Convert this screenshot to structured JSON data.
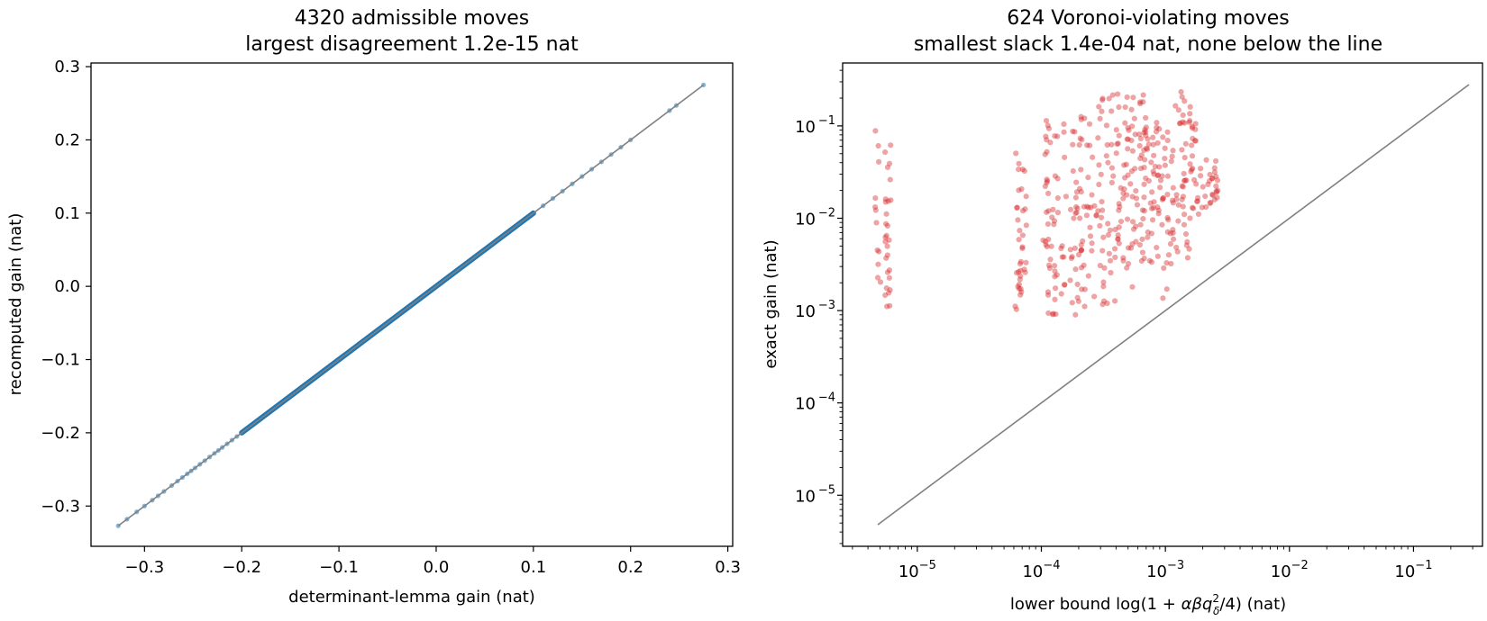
{
  "chart_data": [
    {
      "type": "scatter",
      "title": "4320 admissible moves",
      "subtitle": "largest disagreement 1.2e-15 nat",
      "xlabel": "determinant-lemma gain (nat)",
      "ylabel": "recomputed gain (nat)",
      "xlim": [
        -0.355,
        0.305
      ],
      "ylim": [
        -0.355,
        0.305
      ],
      "xticks": [
        -0.3,
        -0.2,
        -0.1,
        0.0,
        0.1,
        0.2,
        0.3
      ],
      "xtick_labels": [
        "−0.3",
        "−0.2",
        "−0.1",
        "0.0",
        "0.1",
        "0.2",
        "0.3"
      ],
      "yticks": [
        -0.3,
        -0.2,
        -0.1,
        0.0,
        0.1,
        0.2,
        0.3
      ],
      "ytick_labels": [
        "−0.3",
        "−0.2",
        "−0.1",
        "0.0",
        "0.1",
        "0.2",
        "0.3"
      ],
      "grid": false,
      "point_color": "#1f77b4",
      "reference_line": {
        "from": [
          -0.327,
          -0.327
        ],
        "to": [
          0.275,
          0.275
        ],
        "color": "#808080"
      },
      "points_x": [
        -0.327,
        -0.318,
        -0.308,
        -0.3,
        -0.292,
        -0.286,
        -0.28,
        -0.272,
        -0.266,
        -0.261,
        -0.256,
        -0.252,
        -0.248,
        -0.243,
        -0.238,
        -0.233,
        -0.228,
        -0.224,
        -0.22,
        -0.215,
        -0.21,
        -0.205,
        -0.2,
        0.1,
        0.11,
        0.12,
        0.13,
        0.14,
        0.15,
        0.16,
        0.17,
        0.18,
        0.19,
        0.2,
        0.24,
        0.247,
        0.275
      ],
      "points_y": [
        -0.327,
        -0.318,
        -0.308,
        -0.3,
        -0.292,
        -0.286,
        -0.28,
        -0.272,
        -0.266,
        -0.261,
        -0.256,
        -0.252,
        -0.248,
        -0.243,
        -0.238,
        -0.233,
        -0.228,
        -0.224,
        -0.22,
        -0.215,
        -0.21,
        -0.205,
        -0.2,
        0.1,
        0.11,
        0.12,
        0.13,
        0.14,
        0.15,
        0.16,
        0.17,
        0.18,
        0.19,
        0.2,
        0.24,
        0.247,
        0.275
      ],
      "dense_segment": {
        "from": -0.2,
        "to": 0.1
      }
    },
    {
      "type": "scatter",
      "title": "624 Voronoi-violating moves",
      "subtitle": "smallest slack 1.4e-04 nat, none below the line",
      "xlabel_prefix": "lower bound log",
      "xlabel": "lower bound log(1 + αβq_δ²/4) (nat)",
      "ylabel": "exact gain (nat)",
      "xscale": "log",
      "yscale": "log",
      "xlim": [
        2.5e-06,
        0.36
      ],
      "ylim": [
        2.8e-06,
        0.48
      ],
      "xticks": [
        1e-05,
        0.0001,
        0.001,
        0.01,
        0.1
      ],
      "xtick_labels": [
        [
          "10",
          "−5"
        ],
        [
          "10",
          "−4"
        ],
        [
          "10",
          "−3"
        ],
        [
          "10",
          "−2"
        ],
        [
          "10",
          "−1"
        ]
      ],
      "yticks": [
        1e-05,
        0.0001,
        0.001,
        0.01,
        0.1
      ],
      "ytick_labels": [
        [
          "10",
          "−5"
        ],
        [
          "10",
          "−4"
        ],
        [
          "10",
          "−3"
        ],
        [
          "10",
          "−2"
        ],
        [
          "10",
          "−1"
        ]
      ],
      "grid": false,
      "point_color": "#d62728",
      "reference_line": {
        "from": [
          4.8e-06,
          4.8e-06
        ],
        "to": [
          0.28,
          0.28
        ],
        "color": "#808080"
      },
      "x_columns": [
        4.8e-06,
        5.7e-06,
        5.8e-06,
        6.4e-05,
        6.8e-05,
        7.2e-05,
        0.000108,
        0.000115,
        0.00013,
        0.00015,
        0.00018,
        0.0002,
        0.00022,
        0.00024,
        0.00027,
        0.0003,
        0.00033,
        0.00036,
        0.0004,
        0.00044,
        0.00048,
        0.00052,
        0.00056,
        0.0006,
        0.00065,
        0.0007,
        0.00075,
        0.0008,
        0.00085,
        0.0009,
        0.001,
        0.0011,
        0.0012,
        0.00135,
        0.0015,
        0.0017,
        0.0019,
        0.0022,
        0.0025
      ],
      "y_log_ranges": [
        [
          -2.78,
          -1.0
        ],
        [
          -3.1,
          -1.2
        ],
        [
          -3.0,
          -1.15
        ],
        [
          -3.0,
          -1.1
        ],
        [
          -2.8,
          -1.2
        ],
        [
          -2.6,
          -1.05
        ],
        [
          -3.2,
          -0.92
        ],
        [
          -2.9,
          -0.95
        ],
        [
          -3.1,
          -1.0
        ],
        [
          -3.0,
          -0.9
        ],
        [
          -3.25,
          -0.88
        ],
        [
          -2.9,
          -0.82
        ],
        [
          -3.1,
          -0.8
        ],
        [
          -2.85,
          -0.75
        ],
        [
          -3.0,
          -0.72
        ],
        [
          -2.7,
          -0.65
        ],
        [
          -2.95,
          -0.7
        ],
        [
          -2.65,
          -0.6
        ],
        [
          -2.9,
          -0.62
        ],
        [
          -2.55,
          -0.68
        ],
        [
          -2.8,
          -0.7
        ],
        [
          -2.5,
          -0.65
        ],
        [
          -2.75,
          -0.72
        ],
        [
          -2.45,
          -0.78
        ],
        [
          -2.6,
          -0.6
        ],
        [
          -2.3,
          -0.8
        ],
        [
          -2.5,
          -0.85
        ],
        [
          -2.2,
          -0.9
        ],
        [
          -2.6,
          -1.0
        ],
        [
          -2.2,
          -0.92
        ],
        [
          -3.0,
          -1.0
        ],
        [
          -2.5,
          -1.05
        ],
        [
          -2.4,
          -0.62
        ],
        [
          -2.0,
          -0.62
        ],
        [
          -2.45,
          -0.6
        ],
        [
          -2.05,
          -0.9
        ],
        [
          -2.0,
          -1.35
        ],
        [
          -1.95,
          -1.35
        ],
        [
          -1.8,
          -1.35
        ]
      ]
    }
  ]
}
